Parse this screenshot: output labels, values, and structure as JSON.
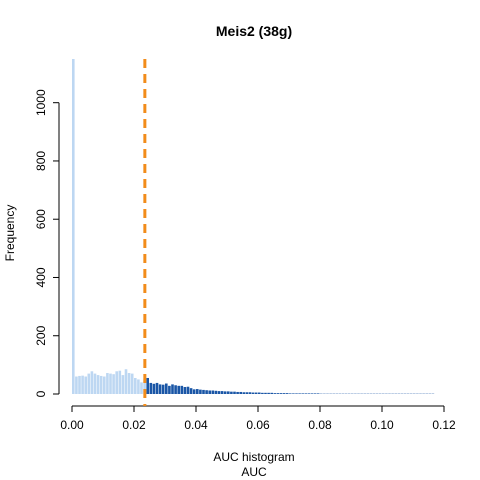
{
  "chart_data": {
    "type": "bar",
    "title": "Meis2 (38g)",
    "xlabel_line1": "AUC histogram",
    "xlabel_line2": "AUC",
    "ylabel": "Frequency",
    "xlim": [
      0.0,
      0.12
    ],
    "ylim": [
      0,
      1150
    ],
    "x_ticks": [
      0.0,
      0.02,
      0.04,
      0.06,
      0.08,
      0.1,
      0.12
    ],
    "x_tick_labels": [
      "0.00",
      "0.02",
      "0.04",
      "0.06",
      "0.08",
      "0.10",
      "0.12"
    ],
    "y_ticks": [
      0,
      200,
      400,
      600,
      800,
      1000
    ],
    "y_tick_labels": [
      "0",
      "200",
      "400",
      "600",
      "800",
      "1000"
    ],
    "bin_width": 0.001,
    "bin_start": 0.0,
    "threshold": 0.0235,
    "threshold_color": "#F28C1A",
    "color_below": "#BDD7F2",
    "color_above": "#1A56A6",
    "counts": [
      1150,
      60,
      62,
      63,
      60,
      70,
      78,
      70,
      65,
      62,
      60,
      72,
      70,
      68,
      78,
      80,
      65,
      85,
      72,
      70,
      55,
      50,
      40,
      50,
      55,
      38,
      35,
      38,
      33,
      32,
      36,
      28,
      33,
      30,
      28,
      28,
      24,
      25,
      20,
      16,
      17,
      15,
      14,
      13,
      12,
      12,
      11,
      10,
      10,
      9,
      9,
      8,
      8,
      7,
      7,
      6,
      6,
      6,
      5,
      5,
      5,
      4,
      4,
      4,
      4,
      3,
      3,
      3,
      3,
      3,
      2,
      2,
      2,
      2,
      2,
      2,
      2,
      2,
      2,
      2,
      1,
      1,
      1,
      1,
      1,
      1,
      1,
      1,
      1,
      1,
      1,
      1,
      1,
      1,
      1,
      1,
      1,
      1,
      1,
      1,
      1,
      1,
      1,
      1,
      1,
      1,
      1,
      1,
      1,
      1,
      1,
      1,
      1,
      1,
      1,
      1,
      1
    ]
  }
}
